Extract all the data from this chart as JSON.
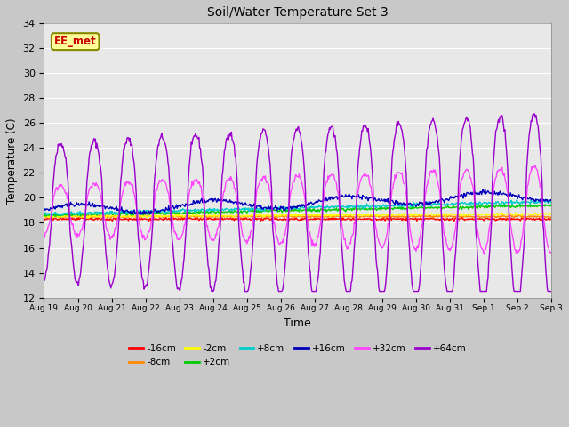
{
  "title": "Soil/Water Temperature Set 3",
  "xlabel": "Time",
  "ylabel": "Temperature (C)",
  "ylim": [
    12,
    34
  ],
  "yticks": [
    12,
    14,
    16,
    18,
    20,
    22,
    24,
    26,
    28,
    30,
    32,
    34
  ],
  "n_days": 15,
  "annotation_text": "EE_met",
  "annotation_color": "#cc0000",
  "annotation_bg": "#ffff99",
  "annotation_border": "#888800",
  "fig_bg": "#c8c8c8",
  "plot_bg": "#e8e8e8",
  "grid_color": "#ffffff",
  "series": {
    "-16cm": {
      "color": "#ff0000"
    },
    "-8cm": {
      "color": "#ff8800"
    },
    "-2cm": {
      "color": "#ffff00"
    },
    "+2cm": {
      "color": "#00cc00"
    },
    "+8cm": {
      "color": "#00cccc"
    },
    "+16cm": {
      "color": "#0000bb"
    },
    "+32cm": {
      "color": "#ff44ff"
    },
    "+64cm": {
      "color": "#9900cc"
    }
  },
  "xtick_labels": [
    "Aug 19",
    "Aug 20",
    "Aug 21",
    "Aug 22",
    "Aug 23",
    "Aug 24",
    "Aug 25",
    "Aug 26",
    "Aug 27",
    "Aug 28",
    "Aug 29",
    "Aug 30",
    "Aug 31",
    "Sep 1",
    "Sep 2",
    "Sep 3"
  ],
  "figsize": [
    6.4,
    4.8
  ],
  "dpi": 100
}
